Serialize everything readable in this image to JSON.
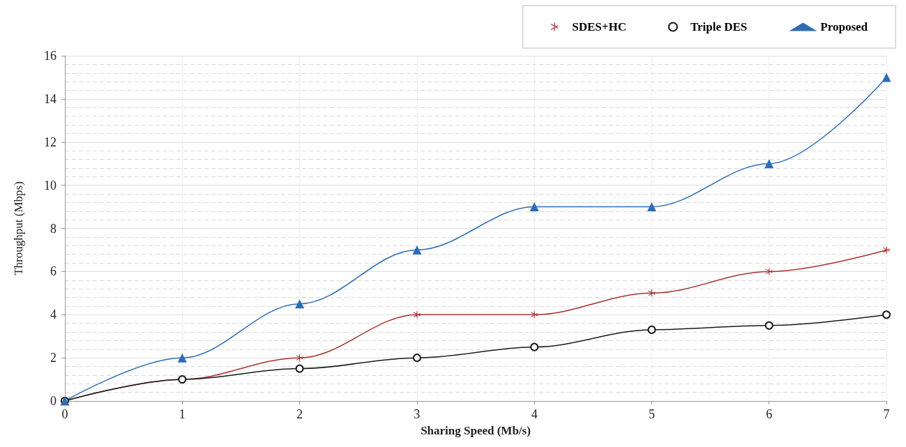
{
  "chart_data": {
    "type": "line",
    "xlabel": "Sharing Speed (Mb/s)",
    "ylabel": "Throughput (Mbps)",
    "x": [
      0,
      1,
      2,
      3,
      4,
      5,
      6,
      7
    ],
    "series": [
      {
        "name": "SDES+HC",
        "color": "#a83232",
        "marker": "cross",
        "values": [
          0,
          1,
          2,
          4,
          4,
          5,
          6,
          7
        ]
      },
      {
        "name": "Triple DES",
        "color": "#1a1a1a",
        "marker": "circle",
        "values": [
          0,
          1,
          1.5,
          2,
          2.5,
          3.3,
          3.5,
          4
        ]
      },
      {
        "name": "Proposed",
        "color": "#2e6db4",
        "marker": "triangle",
        "values": [
          0,
          2,
          4.5,
          7,
          9,
          9,
          11,
          15
        ]
      }
    ],
    "xlim": [
      0,
      7
    ],
    "xticks": [
      0,
      1,
      2,
      3,
      4,
      5,
      6,
      7
    ],
    "ylim": [
      0,
      16
    ],
    "yticks": [
      0,
      2,
      4,
      6,
      8,
      10,
      12,
      14,
      16
    ],
    "grid": true,
    "legend": "top right",
    "line_style": "solid"
  }
}
